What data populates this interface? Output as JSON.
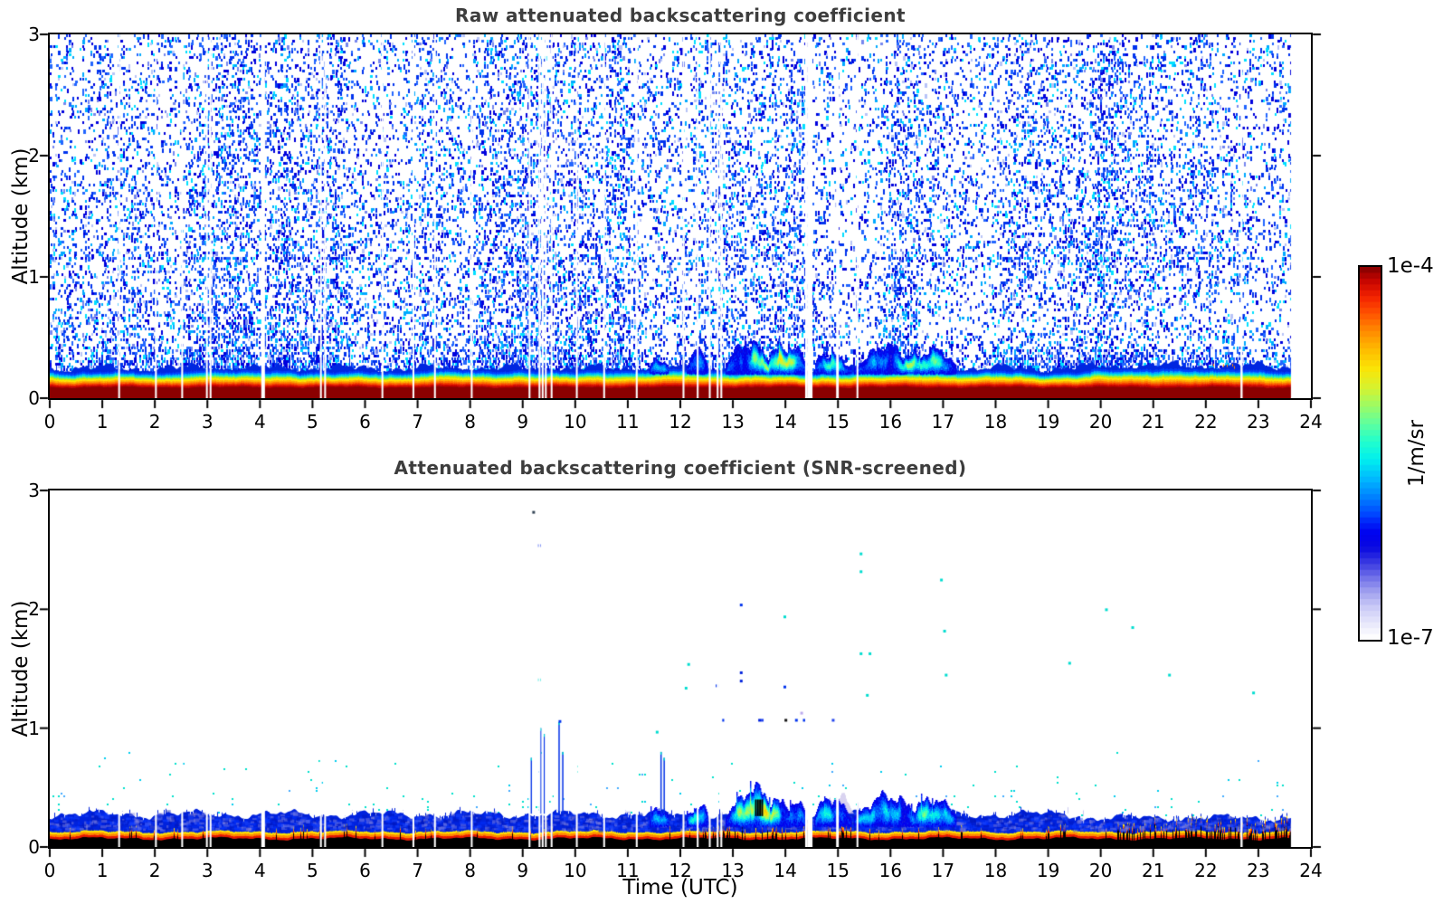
{
  "figure": {
    "background": "#ffffff"
  },
  "panels": {
    "top": {
      "title": "Raw attenuated backscattering coefficient"
    },
    "bottom": {
      "title": "Attenuated backscattering coefficient (SNR-screened)"
    }
  },
  "axes": {
    "x_label": "Time (UTC)",
    "y_label": "Altitude (km)",
    "x_ticks": [
      0,
      1,
      2,
      3,
      4,
      5,
      6,
      7,
      8,
      9,
      10,
      11,
      12,
      13,
      14,
      15,
      16,
      17,
      18,
      19,
      20,
      21,
      22,
      23,
      24
    ],
    "y_ticks": [
      0,
      1,
      2,
      3
    ],
    "x_range": [
      0,
      24
    ],
    "y_range": [
      0,
      3
    ]
  },
  "colorbar": {
    "max_label": "1e-4",
    "min_label": "1e-7",
    "unit": "1/m/sr",
    "segments": 64,
    "stops": [
      [
        0,
        "#ffffff"
      ],
      [
        0.04,
        "#e6e6fb"
      ],
      [
        0.08,
        "#ccccf7"
      ],
      [
        0.12,
        "#a4a4f0"
      ],
      [
        0.16,
        "#7272e9"
      ],
      [
        0.2,
        "#3a3ae2"
      ],
      [
        0.24,
        "#0b0be0"
      ],
      [
        0.28,
        "#0000f0"
      ],
      [
        0.33,
        "#0041ff"
      ],
      [
        0.38,
        "#0080ff"
      ],
      [
        0.43,
        "#00b9ff"
      ],
      [
        0.48,
        "#00eeee"
      ],
      [
        0.53,
        "#22ffcc"
      ],
      [
        0.58,
        "#62ff9b"
      ],
      [
        0.63,
        "#a2fa5f"
      ],
      [
        0.68,
        "#d8f22e"
      ],
      [
        0.73,
        "#fbe406"
      ],
      [
        0.78,
        "#ffbb00"
      ],
      [
        0.83,
        "#ff8a00"
      ],
      [
        0.88,
        "#ff5000"
      ],
      [
        0.92,
        "#f42400"
      ],
      [
        0.96,
        "#cc0700"
      ],
      [
        1,
        "#8b0000"
      ]
    ]
  },
  "chart_data": [
    {
      "type": "heatmap",
      "title": "Raw attenuated backscattering coefficient",
      "xlabel": "Time (UTC)",
      "ylabel": "Altitude (km)",
      "xlim": [
        0,
        24
      ],
      "ylim": [
        0,
        3
      ],
      "colorscale": {
        "min": "1e-7",
        "max": "1e-4",
        "unit": "1/m/sr",
        "scale": "log"
      },
      "data_end_hour": 23.62,
      "gap_hours": [
        [
          1.32,
          0.035
        ],
        [
          2.02,
          0.035
        ],
        [
          2.52,
          0.035
        ],
        [
          2.99,
          0.035
        ],
        [
          3.06,
          0.035
        ],
        [
          4.06,
          0.07
        ],
        [
          5.16,
          0.035
        ],
        [
          5.24,
          0.035
        ],
        [
          6.33,
          0.035
        ],
        [
          6.92,
          0.035
        ],
        [
          7.33,
          0.035
        ],
        [
          8.03,
          0.035
        ],
        [
          9.13,
          0.035
        ],
        [
          9.32,
          0.035
        ],
        [
          9.38,
          0.035
        ],
        [
          9.44,
          0.035
        ],
        [
          9.55,
          0.035
        ],
        [
          10.03,
          0.035
        ],
        [
          10.55,
          0.035
        ],
        [
          11.17,
          0.035
        ],
        [
          12.06,
          0.035
        ],
        [
          12.33,
          0.035
        ],
        [
          12.56,
          0.035
        ],
        [
          12.71,
          0.035
        ],
        [
          12.78,
          0.035
        ],
        [
          14.4,
          0.05
        ],
        [
          14.47,
          0.09
        ],
        [
          14.99,
          0.05
        ],
        [
          15.37,
          0.035
        ],
        [
          22.68,
          0.04
        ]
      ],
      "surface_layer": {
        "dark_red_top_km": 0.095,
        "band_colors": [
          "#c40000",
          "#f03000",
          "#ff7300",
          "#ffb000",
          "#ffe800",
          "#c8f000",
          "#5ff080",
          "#00e0e0",
          "#00a0ff",
          "#0040ff"
        ],
        "band_thickness_km": [
          0.014,
          0.013,
          0.013,
          0.013,
          0.013,
          0.011,
          0.011,
          0.011,
          0.012,
          0.016
        ],
        "blue_top_km": 0.245,
        "bulge_hours": [
          9.3,
          12.3
        ],
        "orange_spike_hours": [
          21.9,
          22.6
        ]
      },
      "noise": {
        "density_3km": 0.35,
        "density_1km": 0.44,
        "density_low": 0.95,
        "dense_line_alt_km": 1.17,
        "sparse_band_hours": [
          14.35,
          15.75
        ],
        "palette": [
          "#0033ee",
          "#0000dd",
          "#2266ff",
          "#00aaff",
          "#00e0ff",
          "#7788ee",
          "#b8c4f8"
        ]
      },
      "clouds": [
        {
          "t_start": 11.42,
          "t_end": 11.78,
          "base_km": 0.26,
          "top_km": 0.4,
          "intensity": 0.4
        },
        {
          "t_start": 12.12,
          "t_end": 12.52,
          "base_km": 0.26,
          "top_km": 0.42,
          "intensity": 0.55
        },
        {
          "t_start": 12.86,
          "t_end": 14.4,
          "base_km": 0.25,
          "top_km": 0.56,
          "intensity": 1.0
        },
        {
          "t_start": 14.55,
          "t_end": 15.25,
          "base_km": 0.24,
          "top_km": 0.46,
          "intensity": 0.55
        },
        {
          "t_start": 15.3,
          "t_end": 17.25,
          "base_km": 0.25,
          "top_km": 0.5,
          "intensity": 0.8
        }
      ]
    },
    {
      "type": "heatmap",
      "title": "Attenuated backscattering coefficient (SNR-screened)",
      "xlabel": "Time (UTC)",
      "ylabel": "Altitude (km)",
      "xlim": [
        0,
        24
      ],
      "ylim": [
        0,
        3
      ],
      "colorscale": {
        "min": "1e-7",
        "max": "1e-4",
        "unit": "1/m/sr",
        "scale": "log"
      },
      "data_end_hour": 23.62,
      "gap_hours": [
        [
          1.32,
          0.035
        ],
        [
          2.02,
          0.035
        ],
        [
          2.52,
          0.035
        ],
        [
          2.99,
          0.035
        ],
        [
          3.06,
          0.035
        ],
        [
          4.06,
          0.07
        ],
        [
          5.16,
          0.035
        ],
        [
          5.24,
          0.035
        ],
        [
          6.33,
          0.035
        ],
        [
          6.92,
          0.035
        ],
        [
          7.33,
          0.035
        ],
        [
          8.03,
          0.035
        ],
        [
          9.13,
          0.035
        ],
        [
          9.32,
          0.035
        ],
        [
          9.38,
          0.035
        ],
        [
          9.44,
          0.035
        ],
        [
          9.55,
          0.035
        ],
        [
          10.03,
          0.035
        ],
        [
          10.55,
          0.035
        ],
        [
          11.17,
          0.035
        ],
        [
          12.06,
          0.035
        ],
        [
          12.33,
          0.035
        ],
        [
          12.56,
          0.035
        ],
        [
          12.71,
          0.035
        ],
        [
          12.78,
          0.035
        ],
        [
          14.4,
          0.05
        ],
        [
          14.47,
          0.09
        ],
        [
          14.99,
          0.05
        ],
        [
          15.37,
          0.035
        ],
        [
          22.68,
          0.04
        ]
      ],
      "surface_layer": {
        "black_top_km": 0.075,
        "band_colors": [
          "#e81800",
          "#ff8c00",
          "#ffe400"
        ],
        "band_thickness_km": [
          0.02,
          0.02,
          0.017
        ],
        "blue_top_km": 0.275,
        "blue_top_late_km": 0.245,
        "late_hour": 19.6,
        "black_spiky_hours": [
          20.3,
          23.62
        ]
      },
      "noise": {
        "cyan_speckle_alt_km": [
          0.26,
          0.85
        ],
        "cyan_density": 0.03,
        "palette": [
          "#00e0cc",
          "#00ccee",
          "#44aaff"
        ]
      },
      "clouds": [
        {
          "t_start": 11.42,
          "t_end": 11.78,
          "base_km": 0.26,
          "top_km": 0.4,
          "intensity": 0.4
        },
        {
          "t_start": 12.12,
          "t_end": 12.52,
          "base_km": 0.26,
          "top_km": 0.42,
          "intensity": 0.55
        },
        {
          "t_start": 12.86,
          "t_end": 14.4,
          "base_km": 0.25,
          "top_km": 0.56,
          "intensity": 1.0
        },
        {
          "t_start": 14.55,
          "t_end": 15.25,
          "base_km": 0.24,
          "top_km": 0.46,
          "intensity": 0.55
        },
        {
          "t_start": 15.3,
          "t_end": 17.25,
          "base_km": 0.25,
          "top_km": 0.5,
          "intensity": 0.8
        }
      ],
      "lavender_smudges": [
        {
          "t_start": 14.62,
          "t_end": 15.3,
          "base_km": 0.28,
          "top_km": 0.5,
          "color": "#cfc8ec"
        }
      ],
      "black_marks": [
        {
          "t": 13.42
        },
        {
          "t": 13.46
        },
        {
          "t": 13.5
        },
        {
          "t": 13.54
        }
      ],
      "black_marks_alt_km": [
        0.26,
        0.4
      ],
      "vertical_spikes": [
        {
          "t": 9.15,
          "top_km": 0.75
        },
        {
          "t": 9.33,
          "top_km": 1.0
        },
        {
          "t": 9.4,
          "top_km": 0.95
        },
        {
          "t": 9.68,
          "top_km": 1.05
        },
        {
          "t": 9.75,
          "top_km": 0.8
        },
        {
          "t": 11.62,
          "top_km": 0.8
        },
        {
          "t": 11.68,
          "top_km": 0.75
        }
      ],
      "isolated_dots": [
        {
          "t": 9.2,
          "alt_km": 2.82,
          "color": "#334455"
        },
        {
          "t": 9.31,
          "alt_km": 2.54,
          "color": "#1133ee"
        },
        {
          "t": 9.31,
          "alt_km": 1.41,
          "color": "#00ddd0"
        },
        {
          "t": 9.7,
          "alt_km": 1.06,
          "color": "#0033ee"
        },
        {
          "t": 11.55,
          "alt_km": 0.97,
          "color": "#00ddd0"
        },
        {
          "t": 12.1,
          "alt_km": 1.34,
          "color": "#00ddd0"
        },
        {
          "t": 12.15,
          "alt_km": 1.54,
          "color": "#00ddd0"
        },
        {
          "t": 12.69,
          "alt_km": 1.36,
          "color": "#0033ee"
        },
        {
          "t": 12.8,
          "alt_km": 1.07,
          "color": "#0033ee"
        },
        {
          "t": 13.15,
          "alt_km": 2.04,
          "color": "#0033ee"
        },
        {
          "t": 13.15,
          "alt_km": 1.47,
          "color": "#0022dd"
        },
        {
          "t": 13.15,
          "alt_km": 1.4,
          "color": "#0022dd"
        },
        {
          "t": 13.5,
          "alt_km": 1.07,
          "color": "#0022dd"
        },
        {
          "t": 13.55,
          "alt_km": 1.07,
          "color": "#2244ee"
        },
        {
          "t": 13.98,
          "alt_km": 1.94,
          "color": "#00ddd0"
        },
        {
          "t": 13.98,
          "alt_km": 1.35,
          "color": "#0033ee"
        },
        {
          "t": 14.0,
          "alt_km": 1.07,
          "color": "#111111"
        },
        {
          "t": 14.2,
          "alt_km": 1.07,
          "color": "#0033ee"
        },
        {
          "t": 14.3,
          "alt_km": 1.13,
          "color": "#bbaaee"
        },
        {
          "t": 14.35,
          "alt_km": 1.07,
          "color": "#0033ee"
        },
        {
          "t": 14.9,
          "alt_km": 1.07,
          "color": "#2244ee"
        },
        {
          "t": 15.43,
          "alt_km": 2.47,
          "color": "#00ddd0"
        },
        {
          "t": 15.43,
          "alt_km": 2.32,
          "color": "#00ddd0"
        },
        {
          "t": 15.43,
          "alt_km": 1.63,
          "color": "#00ddd0"
        },
        {
          "t": 15.6,
          "alt_km": 1.63,
          "color": "#00ddd0"
        },
        {
          "t": 15.55,
          "alt_km": 1.28,
          "color": "#00ddd0"
        },
        {
          "t": 16.96,
          "alt_km": 2.25,
          "color": "#00ddd0"
        },
        {
          "t": 17.02,
          "alt_km": 1.82,
          "color": "#00ddd0"
        },
        {
          "t": 17.05,
          "alt_km": 1.45,
          "color": "#00ddd0"
        },
        {
          "t": 19.4,
          "alt_km": 1.55,
          "color": "#00ddd0"
        },
        {
          "t": 20.1,
          "alt_km": 2.0,
          "color": "#00ddd0"
        },
        {
          "t": 20.6,
          "alt_km": 1.85,
          "color": "#00ddd0"
        },
        {
          "t": 21.3,
          "alt_km": 1.45,
          "color": "#00ddd0"
        },
        {
          "t": 22.9,
          "alt_km": 1.3,
          "color": "#00ddd0"
        }
      ]
    }
  ]
}
